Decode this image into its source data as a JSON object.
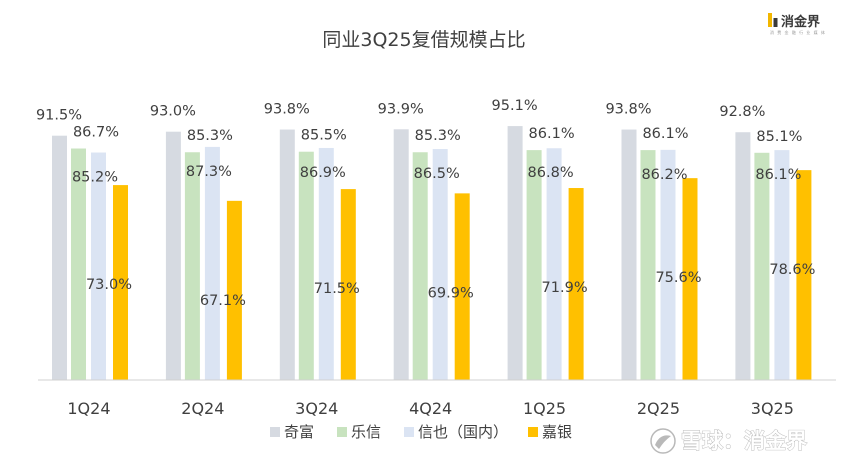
{
  "brand": {
    "logo_text": "消金界",
    "logo_subtext": "消 费 金 融 行 业 媒 体",
    "watermark": "雪球：消金界"
  },
  "chart_data": {
    "type": "bar",
    "title": "同业3Q25复借规模占比",
    "xlabel": "",
    "ylabel": "",
    "ylim": [
      0,
      100
    ],
    "grid": false,
    "legend_position": "bottom",
    "categories": [
      "1Q24",
      "2Q24",
      "3Q24",
      "4Q24",
      "1Q25",
      "2Q25",
      "3Q25"
    ],
    "series": [
      {
        "name": "奇富",
        "color": "#d6dae1",
        "values": [
          91.5,
          93.0,
          93.8,
          93.9,
          95.1,
          93.8,
          92.8
        ],
        "labels": [
          "91.5%",
          "93.0%",
          "93.8%",
          "93.9%",
          "95.1%",
          "93.8%",
          "92.8%"
        ]
      },
      {
        "name": "乐信",
        "color": "#c8e3bf",
        "values": [
          86.7,
          85.3,
          85.5,
          85.3,
          86.1,
          86.1,
          85.1
        ],
        "labels": [
          "86.7%",
          "85.3%",
          "85.5%",
          "85.3%",
          "86.1%",
          "86.1%",
          "85.1%"
        ]
      },
      {
        "name": "信也（国内）",
        "color": "#dbe4f3",
        "values": [
          85.2,
          87.3,
          86.9,
          86.5,
          86.8,
          86.2,
          86.1
        ],
        "labels": [
          "85.2%",
          "87.3%",
          "86.9%",
          "86.5%",
          "86.8%",
          "86.2%",
          "86.1%"
        ]
      },
      {
        "name": "嘉银",
        "color": "#ffc000",
        "values": [
          73.0,
          67.1,
          71.5,
          69.9,
          71.9,
          75.6,
          78.6
        ],
        "labels": [
          "73.0%",
          "67.1%",
          "71.5%",
          "69.9%",
          "71.9%",
          "75.6%",
          "78.6%"
        ]
      }
    ]
  }
}
